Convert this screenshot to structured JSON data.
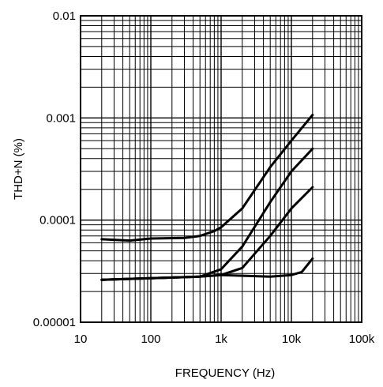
{
  "chart_data": {
    "type": "line",
    "title": "",
    "xlabel": "FREQUENCY (Hz)",
    "ylabel": "THD+N (%)",
    "xscale": "log",
    "yscale": "log",
    "xlim": [
      10,
      100000
    ],
    "ylim": [
      1e-05,
      0.01
    ],
    "grid": true,
    "x_ticks": [
      {
        "value": 10,
        "label": "10"
      },
      {
        "value": 100,
        "label": "100"
      },
      {
        "value": 1000,
        "label": "1k"
      },
      {
        "value": 10000,
        "label": "10k"
      },
      {
        "value": 100000,
        "label": "100k"
      }
    ],
    "y_ticks": [
      {
        "value": 0.01,
        "label": "0.01"
      },
      {
        "value": 0.001,
        "label": "0.001"
      },
      {
        "value": 0.0001,
        "label": "0.0001"
      },
      {
        "value": 1e-05,
        "label": "0.00001"
      }
    ],
    "colors": {
      "line": "#000000",
      "grid": "#000000",
      "background": "#ffffff"
    },
    "series": [
      {
        "points": [
          [
            20,
            6.5e-05
          ],
          [
            50,
            6.3e-05
          ],
          [
            100,
            6.6e-05
          ],
          [
            300,
            6.7e-05
          ],
          [
            500,
            7e-05
          ],
          [
            800,
            7.8e-05
          ],
          [
            1000,
            8.5e-05
          ],
          [
            2000,
            0.00013
          ],
          [
            5000,
            0.00033
          ],
          [
            10000,
            0.0006
          ],
          [
            20000,
            0.00107
          ]
        ]
      },
      {
        "points": [
          [
            20,
            2.6e-05
          ],
          [
            100,
            2.7e-05
          ],
          [
            500,
            2.8e-05
          ],
          [
            1000,
            3.3e-05
          ],
          [
            2000,
            5.5e-05
          ],
          [
            5000,
            0.00015
          ],
          [
            10000,
            0.0003
          ],
          [
            20000,
            0.0005
          ]
        ]
      },
      {
        "points": [
          [
            20,
            2.6e-05
          ],
          [
            100,
            2.7e-05
          ],
          [
            500,
            2.8e-05
          ],
          [
            1000,
            2.9e-05
          ],
          [
            2000,
            3.4e-05
          ],
          [
            5000,
            7e-05
          ],
          [
            10000,
            0.00013
          ],
          [
            20000,
            0.00021
          ]
        ]
      },
      {
        "points": [
          [
            20,
            2.6e-05
          ],
          [
            100,
            2.7e-05
          ],
          [
            500,
            2.8e-05
          ],
          [
            1000,
            2.9e-05
          ],
          [
            5000,
            2.8e-05
          ],
          [
            10000,
            2.9e-05
          ],
          [
            14000,
            3.1e-05
          ],
          [
            20000,
            4.2e-05
          ]
        ]
      }
    ]
  }
}
